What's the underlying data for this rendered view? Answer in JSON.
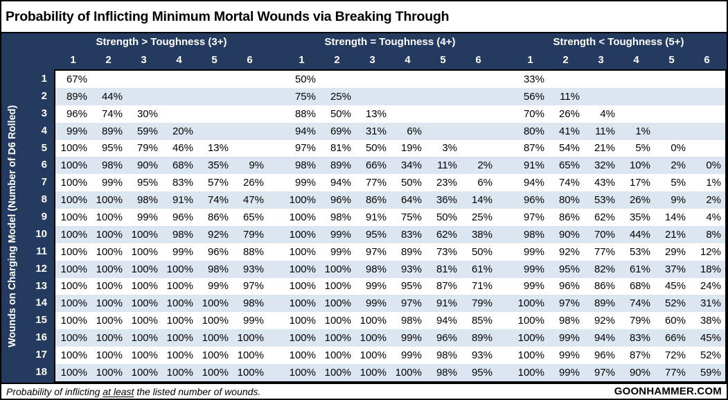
{
  "title": "Probability of Inflicting Minimum Mortal Wounds via Breaking Through",
  "left_axis_label": "Wounds on Charging Model (Number of D6 Rolled)",
  "footer": {
    "note_prefix": "Probability of inflicting ",
    "note_underlined": "at least",
    "note_suffix": " the listed number of wounds.",
    "brand": "GOONHAMMER.COM"
  },
  "colors": {
    "header_navy": "#243A5E",
    "stripe_blue": "#DCE6F1",
    "background": "#FFFFFF",
    "text_black": "#000000",
    "header_text": "#FFFFFF"
  },
  "chart_data": {
    "type": "table",
    "title": "Probability of Inflicting Minimum Mortal Wounds via Breaking Through",
    "row_axis_label": "Wounds on Charging Model (Number of D6 Rolled)",
    "note": "Probability of inflicting at least the listed number of wounds.",
    "column_groups": [
      {
        "label": "Strength > Toughness (3+)",
        "columns": [
          "1",
          "2",
          "3",
          "4",
          "5",
          "6"
        ]
      },
      {
        "label": "Strength = Toughness (4+)",
        "columns": [
          "1",
          "2",
          "3",
          "4",
          "5",
          "6"
        ]
      },
      {
        "label": "Strength < Toughness (5+)",
        "columns": [
          "1",
          "2",
          "3",
          "4",
          "5",
          "6"
        ]
      }
    ],
    "rows": [
      {
        "wounds": "1",
        "values": [
          [
            "67%"
          ],
          [
            "50%"
          ],
          [
            "33%"
          ]
        ]
      },
      {
        "wounds": "2",
        "values": [
          [
            "89%",
            "44%"
          ],
          [
            "75%",
            "25%"
          ],
          [
            "56%",
            "11%"
          ]
        ]
      },
      {
        "wounds": "3",
        "values": [
          [
            "96%",
            "74%",
            "30%"
          ],
          [
            "88%",
            "50%",
            "13%"
          ],
          [
            "70%",
            "26%",
            "4%"
          ]
        ]
      },
      {
        "wounds": "4",
        "values": [
          [
            "99%",
            "89%",
            "59%",
            "20%"
          ],
          [
            "94%",
            "69%",
            "31%",
            "6%"
          ],
          [
            "80%",
            "41%",
            "11%",
            "1%"
          ]
        ]
      },
      {
        "wounds": "5",
        "values": [
          [
            "100%",
            "95%",
            "79%",
            "46%",
            "13%"
          ],
          [
            "97%",
            "81%",
            "50%",
            "19%",
            "3%"
          ],
          [
            "87%",
            "54%",
            "21%",
            "5%",
            "0%"
          ]
        ]
      },
      {
        "wounds": "6",
        "values": [
          [
            "100%",
            "98%",
            "90%",
            "68%",
            "35%",
            "9%"
          ],
          [
            "98%",
            "89%",
            "66%",
            "34%",
            "11%",
            "2%"
          ],
          [
            "91%",
            "65%",
            "32%",
            "10%",
            "2%",
            "0%"
          ]
        ]
      },
      {
        "wounds": "7",
        "values": [
          [
            "100%",
            "99%",
            "95%",
            "83%",
            "57%",
            "26%"
          ],
          [
            "99%",
            "94%",
            "77%",
            "50%",
            "23%",
            "6%"
          ],
          [
            "94%",
            "74%",
            "43%",
            "17%",
            "5%",
            "1%"
          ]
        ]
      },
      {
        "wounds": "8",
        "values": [
          [
            "100%",
            "100%",
            "98%",
            "91%",
            "74%",
            "47%"
          ],
          [
            "100%",
            "96%",
            "86%",
            "64%",
            "36%",
            "14%"
          ],
          [
            "96%",
            "80%",
            "53%",
            "26%",
            "9%",
            "2%"
          ]
        ]
      },
      {
        "wounds": "9",
        "values": [
          [
            "100%",
            "100%",
            "99%",
            "96%",
            "86%",
            "65%"
          ],
          [
            "100%",
            "98%",
            "91%",
            "75%",
            "50%",
            "25%"
          ],
          [
            "97%",
            "86%",
            "62%",
            "35%",
            "14%",
            "4%"
          ]
        ]
      },
      {
        "wounds": "10",
        "values": [
          [
            "100%",
            "100%",
            "100%",
            "98%",
            "92%",
            "79%"
          ],
          [
            "100%",
            "99%",
            "95%",
            "83%",
            "62%",
            "38%"
          ],
          [
            "98%",
            "90%",
            "70%",
            "44%",
            "21%",
            "8%"
          ]
        ]
      },
      {
        "wounds": "11",
        "values": [
          [
            "100%",
            "100%",
            "100%",
            "99%",
            "96%",
            "88%"
          ],
          [
            "100%",
            "99%",
            "97%",
            "89%",
            "73%",
            "50%"
          ],
          [
            "99%",
            "92%",
            "77%",
            "53%",
            "29%",
            "12%"
          ]
        ]
      },
      {
        "wounds": "12",
        "values": [
          [
            "100%",
            "100%",
            "100%",
            "100%",
            "98%",
            "93%"
          ],
          [
            "100%",
            "100%",
            "98%",
            "93%",
            "81%",
            "61%"
          ],
          [
            "99%",
            "95%",
            "82%",
            "61%",
            "37%",
            "18%"
          ]
        ]
      },
      {
        "wounds": "13",
        "values": [
          [
            "100%",
            "100%",
            "100%",
            "100%",
            "99%",
            "97%"
          ],
          [
            "100%",
            "100%",
            "99%",
            "95%",
            "87%",
            "71%"
          ],
          [
            "99%",
            "96%",
            "86%",
            "68%",
            "45%",
            "24%"
          ]
        ]
      },
      {
        "wounds": "14",
        "values": [
          [
            "100%",
            "100%",
            "100%",
            "100%",
            "100%",
            "98%"
          ],
          [
            "100%",
            "100%",
            "99%",
            "97%",
            "91%",
            "79%"
          ],
          [
            "100%",
            "97%",
            "89%",
            "74%",
            "52%",
            "31%"
          ]
        ]
      },
      {
        "wounds": "15",
        "values": [
          [
            "100%",
            "100%",
            "100%",
            "100%",
            "100%",
            "99%"
          ],
          [
            "100%",
            "100%",
            "100%",
            "98%",
            "94%",
            "85%"
          ],
          [
            "100%",
            "98%",
            "92%",
            "79%",
            "60%",
            "38%"
          ]
        ]
      },
      {
        "wounds": "16",
        "values": [
          [
            "100%",
            "100%",
            "100%",
            "100%",
            "100%",
            "100%"
          ],
          [
            "100%",
            "100%",
            "100%",
            "99%",
            "96%",
            "89%"
          ],
          [
            "100%",
            "99%",
            "94%",
            "83%",
            "66%",
            "45%"
          ]
        ]
      },
      {
        "wounds": "17",
        "values": [
          [
            "100%",
            "100%",
            "100%",
            "100%",
            "100%",
            "100%"
          ],
          [
            "100%",
            "100%",
            "100%",
            "99%",
            "98%",
            "93%"
          ],
          [
            "100%",
            "99%",
            "96%",
            "87%",
            "72%",
            "52%"
          ]
        ]
      },
      {
        "wounds": "18",
        "values": [
          [
            "100%",
            "100%",
            "100%",
            "100%",
            "100%",
            "100%"
          ],
          [
            "100%",
            "100%",
            "100%",
            "100%",
            "98%",
            "95%"
          ],
          [
            "100%",
            "99%",
            "97%",
            "90%",
            "77%",
            "59%"
          ]
        ]
      }
    ]
  }
}
